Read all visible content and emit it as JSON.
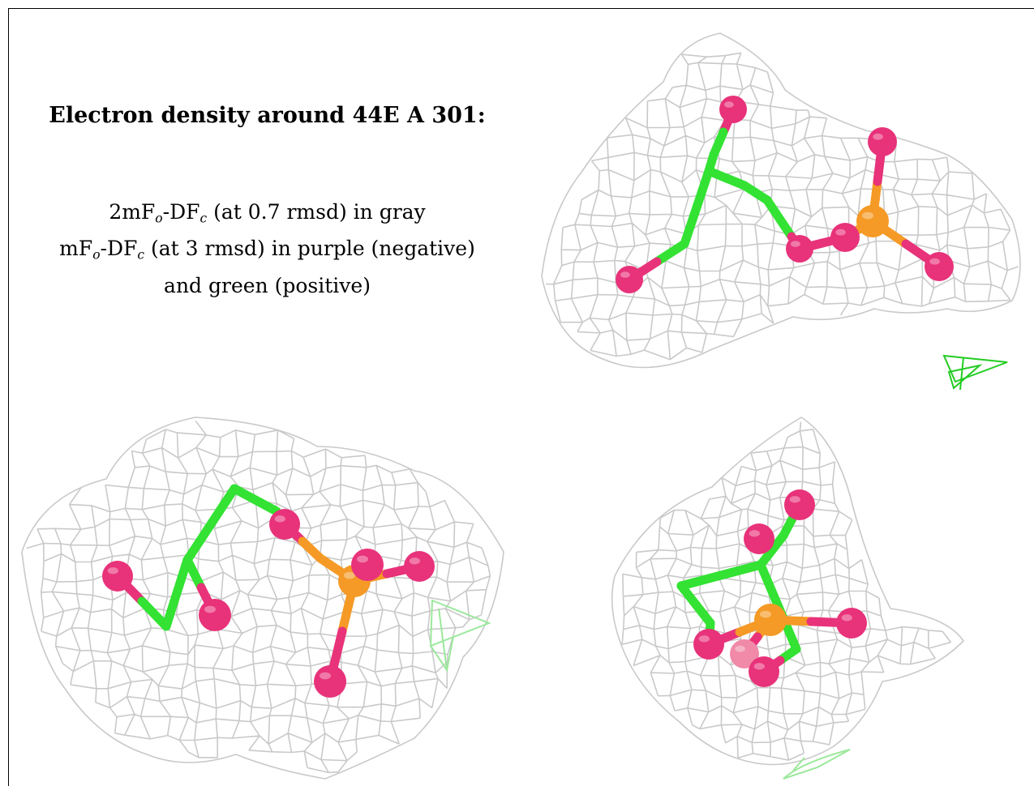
{
  "caption": {
    "title": "Electron density around 44E A 301:",
    "line1": {
      "a": "2mF",
      "s1": "o",
      "b": "-DF",
      "s2": "c",
      "c": " (at 0.7 rmsd) in gray"
    },
    "line2": {
      "a": "mF",
      "s1": "o",
      "b": "-DF",
      "s2": "c",
      "c": " (at 3 rmsd) in purple (negative)"
    },
    "line3": "and green (positive)"
  },
  "colors": {
    "mesh": "#c9c9c9",
    "carbon": "#33e233",
    "oxygen": "#e8327a",
    "phosphorus": "#f59a26",
    "positive_density": "#22cc22"
  },
  "views": [
    "view-1",
    "view-2",
    "view-3"
  ]
}
